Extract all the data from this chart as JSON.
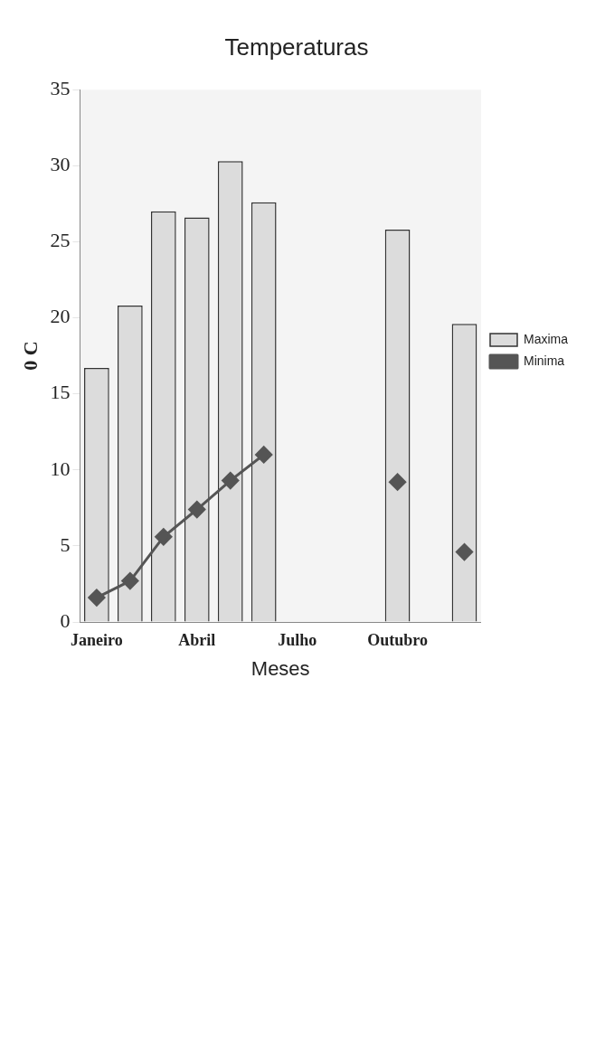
{
  "chart_data": {
    "type": "bar",
    "title": "Temperaturas",
    "xlabel": "Meses",
    "ylabel": "0 C",
    "categories": [
      "Janeiro",
      null,
      null,
      "Abril",
      null,
      null,
      "Julho",
      null,
      null,
      "Outubro",
      null,
      null
    ],
    "series": [
      {
        "name": "Maxima",
        "color": "#dcdcdc",
        "values": [
          16.7,
          20.8,
          27,
          26.6,
          30.3,
          27.6,
          null,
          null,
          null,
          25.8,
          null,
          19.6
        ]
      },
      {
        "name": "Minima",
        "type": "line",
        "color": "#555555",
        "values": [
          1.6,
          2.7,
          5.6,
          7.4,
          9.3,
          11,
          null,
          null,
          null,
          9.2,
          null,
          4.6
        ]
      }
    ],
    "ylim": [
      0,
      35
    ],
    "yticks": [
      0,
      5,
      10,
      15,
      20,
      25,
      30,
      35
    ],
    "grid": false,
    "legend": "right",
    "marker": "diamond"
  }
}
